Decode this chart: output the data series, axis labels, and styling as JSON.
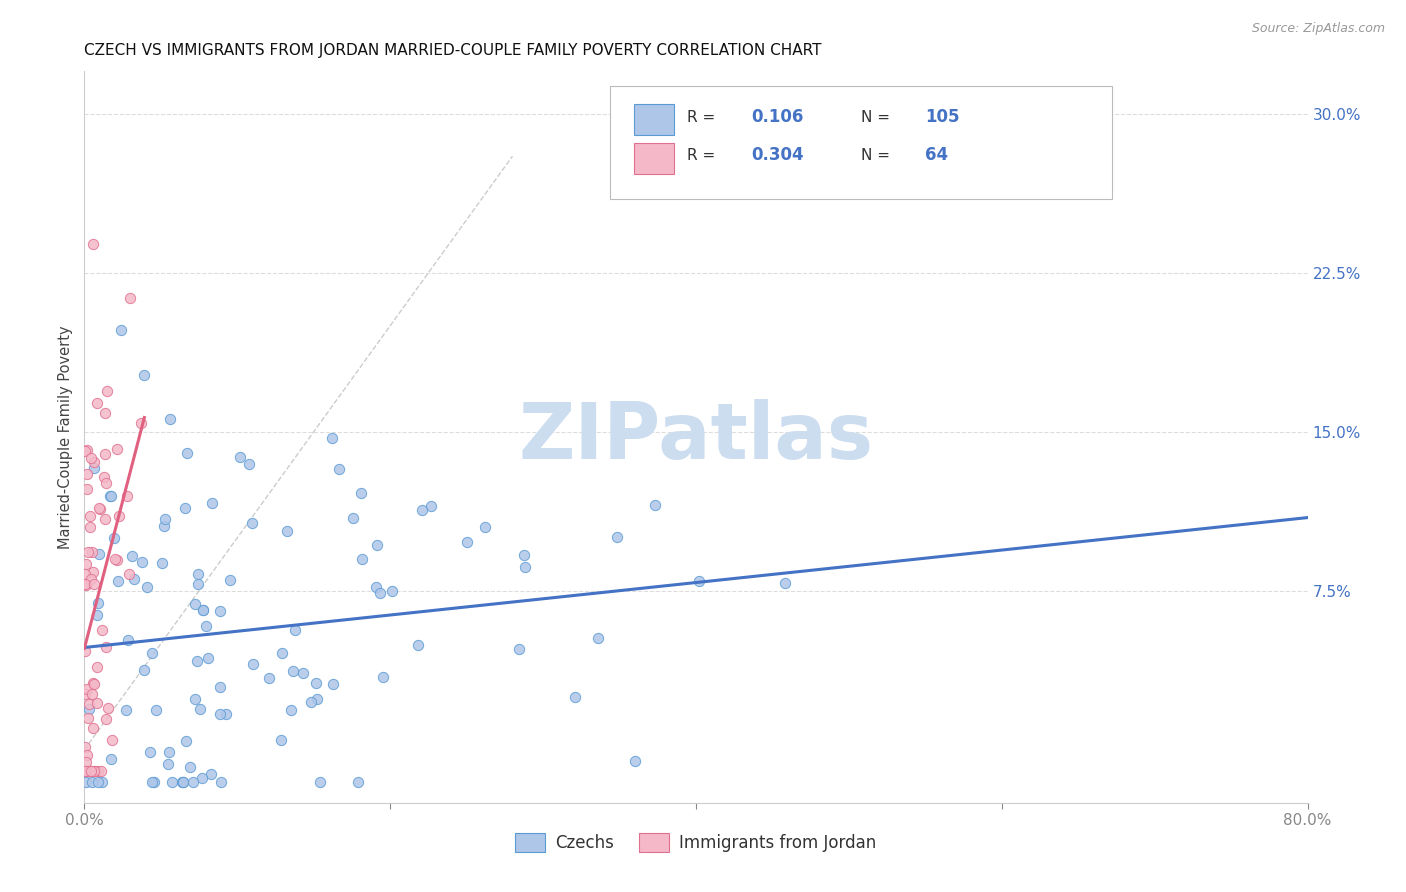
{
  "title": "CZECH VS IMMIGRANTS FROM JORDAN MARRIED-COUPLE FAMILY POVERTY CORRELATION CHART",
  "source": "Source: ZipAtlas.com",
  "ylabel": "Married-Couple Family Poverty",
  "xlim": [
    0,
    0.8
  ],
  "ylim": [
    -0.025,
    0.32
  ],
  "yticks_right": [
    0.075,
    0.15,
    0.225,
    0.3
  ],
  "yticklabels_right": [
    "7.5%",
    "15.0%",
    "22.5%",
    "30.0%"
  ],
  "czech_R": 0.106,
  "czech_N": 105,
  "jordan_R": 0.304,
  "jordan_N": 64,
  "czech_color": "#aec6e8",
  "jordan_color": "#f4b8c8",
  "czech_edge_color": "#5b9bd5",
  "jordan_edge_color": "#e07090",
  "czech_line_color": "#4472c4",
  "jordan_line_color": "#e06080",
  "diag_line_color": "#cccccc",
  "legend_label_czech": "Czechs",
  "legend_label_jordan": "Immigrants from Jordan",
  "watermark": "ZIPatlas",
  "watermark_color": "#ccddf0",
  "background_color": "#ffffff",
  "grid_color": "#dddddd",
  "title_fontsize": 11,
  "source_fontsize": 9,
  "axis_label_color": "#4472c4",
  "right_tick_color": "#4472c4",
  "bottom_tick_color": "#888888",
  "legend_R_color": "#333333",
  "legend_N_color": "#333333",
  "legend_val_color": "#4472c4"
}
